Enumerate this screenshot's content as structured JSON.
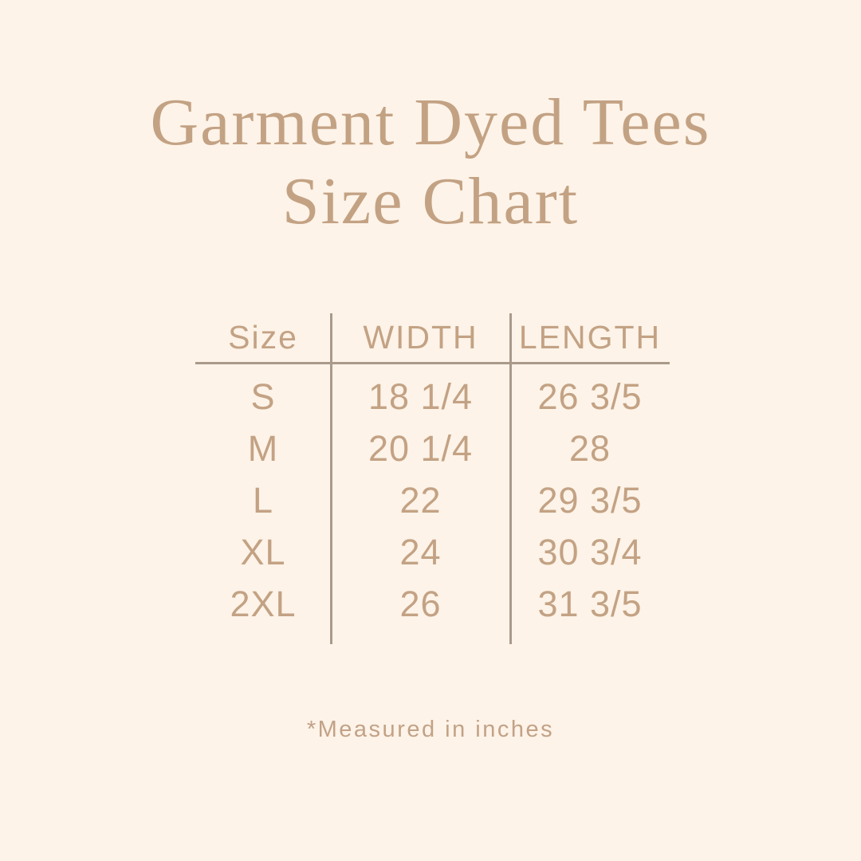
{
  "page": {
    "background_color": "#fdf3e8",
    "accent_text_color": "#c3a284",
    "rule_color": "#a99a8b"
  },
  "title": {
    "line1": "Garment Dyed Tees",
    "line2": "Size Chart"
  },
  "chart_data": {
    "type": "table",
    "title": "Garment Dyed Tees Size Chart",
    "columns": [
      "Size",
      "WIDTH",
      "LENGTH"
    ],
    "rows": [
      {
        "size": "S",
        "width": "18 1/4",
        "length": "26 3/5"
      },
      {
        "size": "M",
        "width": "20 1/4",
        "length": "28"
      },
      {
        "size": "L",
        "width": "22",
        "length": "29 3/5"
      },
      {
        "size": "XL",
        "width": "24",
        "length": "30 3/4"
      },
      {
        "size": "2XL",
        "width": "26",
        "length": "31 3/5"
      }
    ],
    "units_note": "*Measured in inches",
    "layout": {
      "column_dividers": true,
      "header_underline": true,
      "outer_border": false
    }
  },
  "footnote": "*Measured in inches"
}
